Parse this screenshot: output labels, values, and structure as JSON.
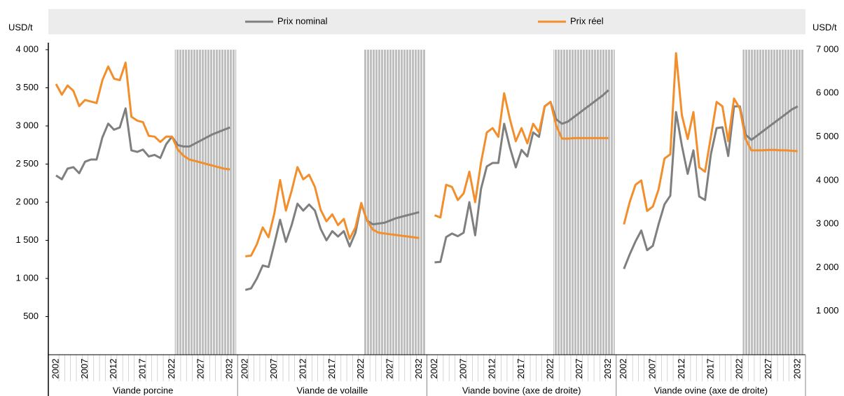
{
  "chart_data": {
    "type": "line",
    "legend": [
      {
        "name": "Prix nominal",
        "color": "#7f7f7f"
      },
      {
        "name": "Prix réel",
        "color": "#f28e2b"
      }
    ],
    "ylabel": "USD/t",
    "y2label": "USD/t",
    "ylim": [
      0,
      4000
    ],
    "yticks": [
      {
        "value": 500,
        "label": "500"
      },
      {
        "value": 1000,
        "label": "1 000"
      },
      {
        "value": 1500,
        "label": "1 500"
      },
      {
        "value": 2000,
        "label": "2 000"
      },
      {
        "value": 2500,
        "label": "2 500"
      },
      {
        "value": 3000,
        "label": "3 000"
      },
      {
        "value": 3500,
        "label": "3 500"
      },
      {
        "value": 4000,
        "label": "4 000"
      }
    ],
    "y2lim": [
      0,
      7000
    ],
    "y2ticks": [
      {
        "value": 1000,
        "label": "1 000"
      },
      {
        "value": 2000,
        "label": "2 000"
      },
      {
        "value": 3000,
        "label": "3 000"
      },
      {
        "value": 4000,
        "label": "4 000"
      },
      {
        "value": 5000,
        "label": "5 000"
      },
      {
        "value": 6000,
        "label": "6 000"
      },
      {
        "value": 7000,
        "label": "7 000"
      }
    ],
    "x": [
      2002,
      2003,
      2004,
      2005,
      2006,
      2007,
      2008,
      2009,
      2010,
      2011,
      2012,
      2013,
      2014,
      2015,
      2016,
      2017,
      2018,
      2019,
      2020,
      2021,
      2022,
      2023,
      2024,
      2025,
      2026,
      2027,
      2028,
      2029,
      2030,
      2031,
      2032
    ],
    "xticks": [
      2002,
      2007,
      2012,
      2017,
      2022,
      2027,
      2032
    ],
    "projection_from": 2023,
    "panels": [
      {
        "label": "Viande porcine",
        "axis": "y",
        "nominal": [
          2350,
          2300,
          2440,
          2460,
          2380,
          2530,
          2560,
          2560,
          2850,
          3030,
          2950,
          2980,
          3230,
          2680,
          2660,
          2690,
          2600,
          2620,
          2580,
          2760,
          2860,
          2750,
          2730,
          2730,
          2770,
          2810,
          2850,
          2890,
          2920,
          2950,
          2980
        ],
        "real": [
          3550,
          3410,
          3530,
          3460,
          3260,
          3340,
          3320,
          3300,
          3600,
          3780,
          3620,
          3600,
          3830,
          3120,
          3070,
          3050,
          2870,
          2860,
          2790,
          2860,
          2860,
          2690,
          2610,
          2560,
          2540,
          2520,
          2500,
          2480,
          2460,
          2440,
          2430
        ]
      },
      {
        "label": "Viande de volaille",
        "axis": "y",
        "nominal": [
          850,
          870,
          1000,
          1170,
          1150,
          1450,
          1770,
          1480,
          1700,
          1980,
          1890,
          1970,
          1890,
          1650,
          1500,
          1620,
          1550,
          1620,
          1420,
          1600,
          1980,
          1760,
          1710,
          1720,
          1730,
          1760,
          1790,
          1810,
          1830,
          1850,
          1870
        ],
        "real": [
          1290,
          1300,
          1450,
          1670,
          1540,
          1850,
          2290,
          1890,
          2150,
          2460,
          2300,
          2360,
          2200,
          1900,
          1750,
          1840,
          1700,
          1780,
          1520,
          1670,
          1990,
          1760,
          1640,
          1600,
          1590,
          1580,
          1570,
          1560,
          1550,
          1540,
          1530
        ]
      },
      {
        "label": "Viande bovine (axe de droite)",
        "axis": "y2",
        "nominal": [
          2120,
          2130,
          2700,
          2780,
          2720,
          2800,
          3500,
          2740,
          3800,
          4320,
          4400,
          4400,
          5300,
          4750,
          4300,
          4700,
          4550,
          5100,
          5000,
          5700,
          5800,
          5400,
          5300,
          5350,
          5450,
          5550,
          5650,
          5750,
          5850,
          5950,
          6070
        ],
        "real": [
          3200,
          3150,
          3900,
          3850,
          3550,
          3700,
          4200,
          3500,
          4400,
          5100,
          5200,
          5000,
          6000,
          5400,
          4900,
          5200,
          4850,
          5300,
          5100,
          5700,
          5800,
          5250,
          4960,
          4960,
          4970,
          4970,
          4970,
          4970,
          4970,
          4970,
          4970
        ]
      },
      {
        "label": "Viande ovine (axe de droite)",
        "axis": "y2",
        "nominal": [
          1970,
          2300,
          2600,
          2850,
          2400,
          2500,
          3000,
          3450,
          3650,
          5570,
          4800,
          4150,
          4690,
          3630,
          3550,
          4600,
          5200,
          5220,
          4560,
          5700,
          5700,
          5050,
          4930,
          5030,
          5130,
          5230,
          5330,
          5430,
          5530,
          5630,
          5700
        ],
        "real": [
          2990,
          3500,
          3900,
          4000,
          3300,
          3400,
          3800,
          4500,
          4600,
          6920,
          5500,
          4950,
          5570,
          4300,
          4200,
          5000,
          5800,
          5700,
          4900,
          5880,
          5650,
          4950,
          4690,
          4690,
          4690,
          4700,
          4700,
          4690,
          4690,
          4680,
          4670
        ]
      }
    ]
  }
}
